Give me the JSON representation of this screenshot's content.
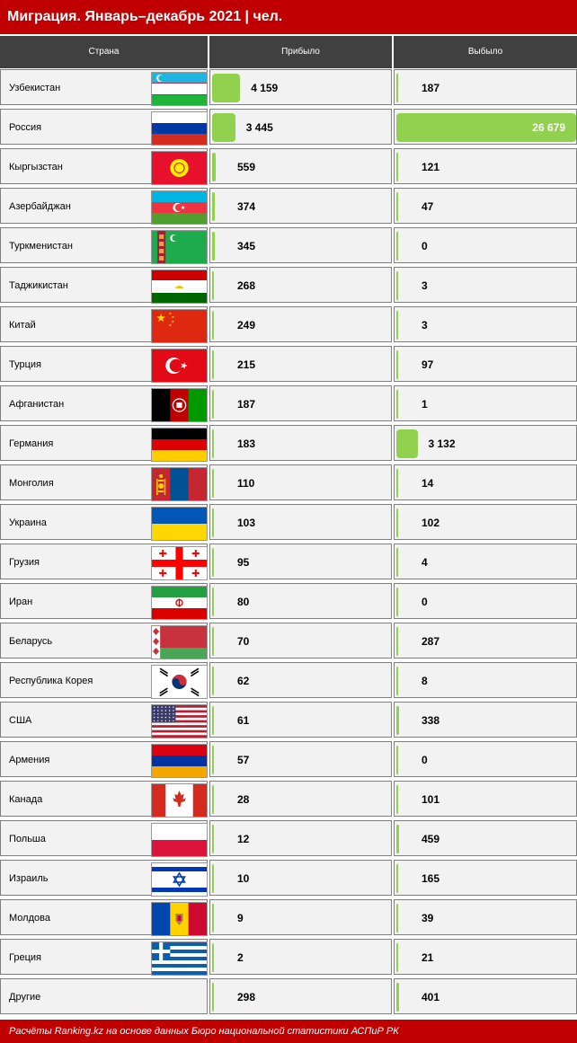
{
  "title": "Миграция. Январь–декабрь 2021 | чел.",
  "footer": "Расчёты Ranking.kz на основе данных Бюро национальной статистики АСПиР РК",
  "colors": {
    "title_bg": "#c00000",
    "header_bg": "#404040",
    "bar": "#92d050",
    "cell_bg": "#f2f2f2"
  },
  "chart_data": {
    "type": "table",
    "title": "Миграция. Январь–декабрь 2021 | чел.",
    "columns": [
      "Страна",
      "Прибыло",
      "Выбыло"
    ],
    "rows": [
      {
        "country": "Узбекистан",
        "flag": "uzbekistan-flag",
        "arrived": 4159,
        "arrived_label": "4 159",
        "departed": 187,
        "departed_label": "187"
      },
      {
        "country": "Россия",
        "flag": "russia-flag",
        "arrived": 3445,
        "arrived_label": "3 445",
        "departed": 26679,
        "departed_label": "26 679"
      },
      {
        "country": "Кыргызстан",
        "flag": "kyrgyzstan-flag",
        "arrived": 559,
        "arrived_label": "559",
        "departed": 121,
        "departed_label": "121"
      },
      {
        "country": "Азербайджан",
        "flag": "azerbaijan-flag",
        "arrived": 374,
        "arrived_label": "374",
        "departed": 47,
        "departed_label": "47"
      },
      {
        "country": "Туркменистан",
        "flag": "turkmenistan-flag",
        "arrived": 345,
        "arrived_label": "345",
        "departed": 0,
        "departed_label": "0"
      },
      {
        "country": "Таджикистан",
        "flag": "tajikistan-flag",
        "arrived": 268,
        "arrived_label": "268",
        "departed": 3,
        "departed_label": "3"
      },
      {
        "country": "Китай",
        "flag": "china-flag",
        "arrived": 249,
        "arrived_label": "249",
        "departed": 3,
        "departed_label": "3"
      },
      {
        "country": "Турция",
        "flag": "turkey-flag",
        "arrived": 215,
        "arrived_label": "215",
        "departed": 97,
        "departed_label": "97"
      },
      {
        "country": "Афганистан",
        "flag": "afghanistan-flag",
        "arrived": 187,
        "arrived_label": "187",
        "departed": 1,
        "departed_label": "1"
      },
      {
        "country": "Германия",
        "flag": "germany-flag",
        "arrived": 183,
        "arrived_label": "183",
        "departed": 3132,
        "departed_label": "3 132"
      },
      {
        "country": "Монголия",
        "flag": "mongolia-flag",
        "arrived": 110,
        "arrived_label": "110",
        "departed": 14,
        "departed_label": "14"
      },
      {
        "country": "Украина",
        "flag": "ukraine-flag",
        "arrived": 103,
        "arrived_label": "103",
        "departed": 102,
        "departed_label": "102"
      },
      {
        "country": "Грузия",
        "flag": "georgia-flag",
        "arrived": 95,
        "arrived_label": "95",
        "departed": 4,
        "departed_label": "4"
      },
      {
        "country": "Иран",
        "flag": "iran-flag",
        "arrived": 80,
        "arrived_label": "80",
        "departed": 0,
        "departed_label": "0"
      },
      {
        "country": "Беларусь",
        "flag": "belarus-flag",
        "arrived": 70,
        "arrived_label": "70",
        "departed": 287,
        "departed_label": "287"
      },
      {
        "country": "Республика Корея",
        "flag": "south-korea-flag",
        "arrived": 62,
        "arrived_label": "62",
        "departed": 8,
        "departed_label": "8"
      },
      {
        "country": "США",
        "flag": "usa-flag",
        "arrived": 61,
        "arrived_label": "61",
        "departed": 338,
        "departed_label": "338"
      },
      {
        "country": "Армения",
        "flag": "armenia-flag",
        "arrived": 57,
        "arrived_label": "57",
        "departed": 0,
        "departed_label": "0"
      },
      {
        "country": "Канада",
        "flag": "canada-flag",
        "arrived": 28,
        "arrived_label": "28",
        "departed": 101,
        "departed_label": "101"
      },
      {
        "country": "Польша",
        "flag": "poland-flag",
        "arrived": 12,
        "arrived_label": "12",
        "departed": 459,
        "departed_label": "459"
      },
      {
        "country": "Израиль",
        "flag": "israel-flag",
        "arrived": 10,
        "arrived_label": "10",
        "departed": 165,
        "departed_label": "165"
      },
      {
        "country": "Молдова",
        "flag": "moldova-flag",
        "arrived": 9,
        "arrived_label": "9",
        "departed": 39,
        "departed_label": "39"
      },
      {
        "country": "Греция",
        "flag": "greece-flag",
        "arrived": 2,
        "arrived_label": "2",
        "departed": 21,
        "departed_label": "21"
      },
      {
        "country": "Другие",
        "flag": "",
        "arrived": 298,
        "arrived_label": "298",
        "departed": 401,
        "departed_label": "401"
      }
    ],
    "bar_max": 26679
  }
}
